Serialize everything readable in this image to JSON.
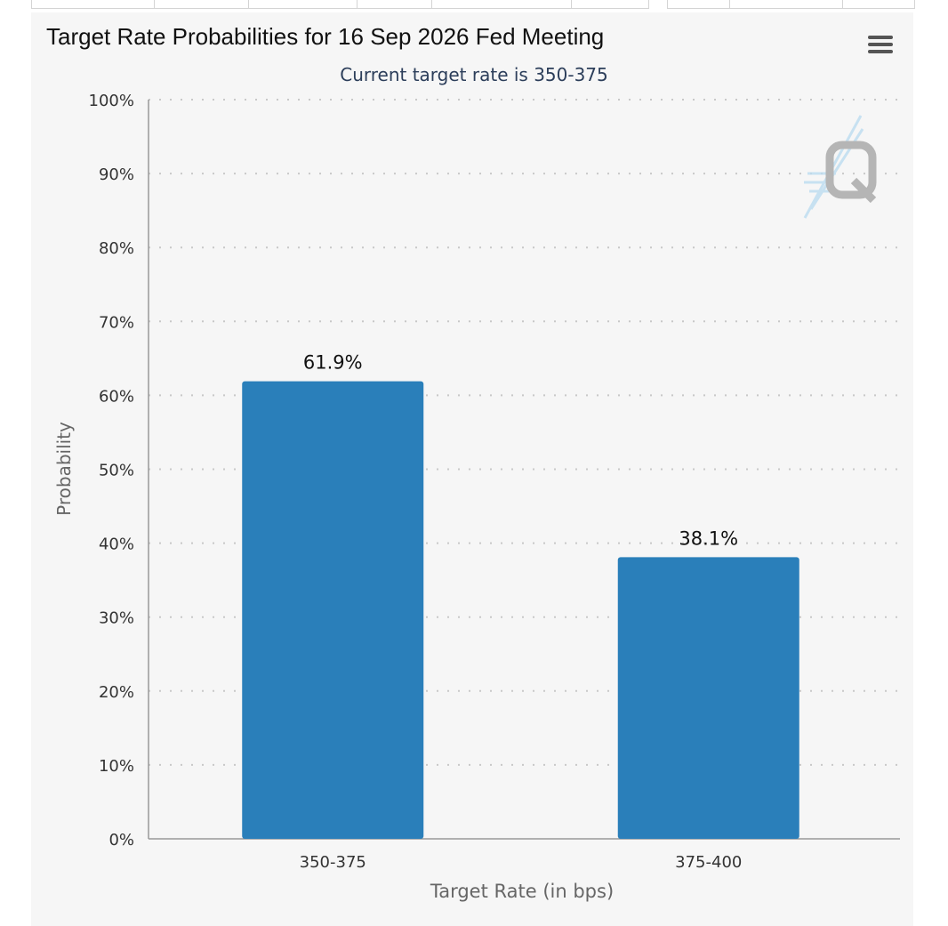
{
  "chart_data": {
    "type": "bar",
    "title": "Target Rate Probabilities for 16 Sep 2026 Fed Meeting",
    "subtitle": "Current target rate is 350-375",
    "categories": [
      "350-375",
      "375-400"
    ],
    "values": [
      61.9,
      38.1
    ],
    "data_labels": [
      "61.9%",
      "38.1%"
    ],
    "xlabel": "Target Rate (in bps)",
    "ylabel": "Probability",
    "ylim": [
      0,
      100
    ],
    "yticks": [
      "0%",
      "10%",
      "20%",
      "30%",
      "40%",
      "50%",
      "60%",
      "70%",
      "80%",
      "90%",
      "100%"
    ],
    "grid": true,
    "bar_color": "#2a7fba"
  },
  "menu_icon": "hamburger-menu-icon",
  "watermark_icon": "q-logo-icon"
}
